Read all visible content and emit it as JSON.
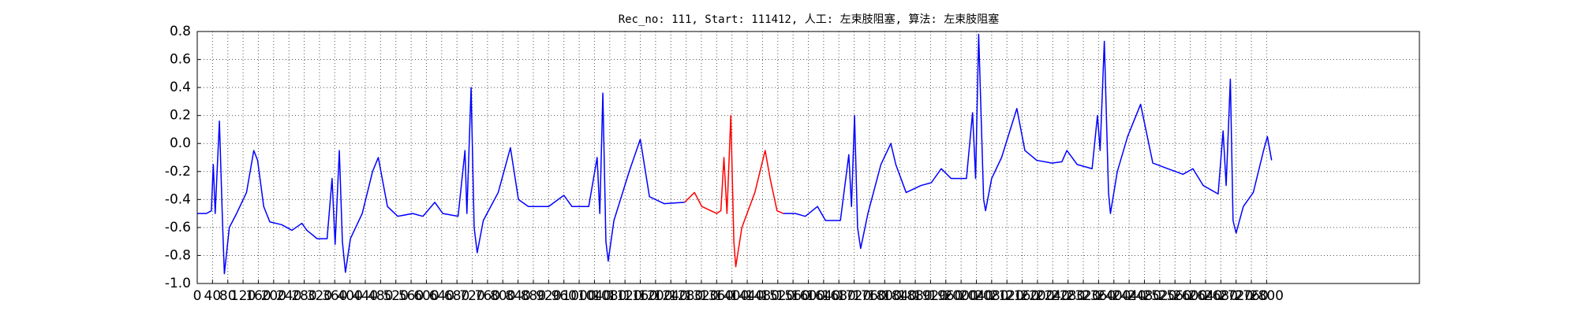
{
  "chart_data": {
    "type": "line",
    "title": "Rec_no: 111, Start: 111412, 人工: 左束肢阻塞, 算法: 左束肢阻塞",
    "x": [
      0,
      24,
      37,
      42,
      47,
      58,
      66,
      71,
      84,
      103,
      129,
      148,
      158,
      174,
      190,
      221,
      248,
      274,
      287,
      314,
      340,
      353,
      361,
      372,
      380,
      388,
      401,
      432,
      459,
      474,
      498,
      525,
      564,
      591,
      622,
      643,
      683,
      701,
      706,
      717,
      725,
      733,
      749,
      788,
      820,
      841,
      867,
      920,
      960,
      981,
      1025,
      1047,
      1054,
      1062,
      1070,
      1076,
      1091,
      1131,
      1160,
      1184,
      1223,
      1276,
      1302,
      1321,
      1360,
      1371,
      1379,
      1387,
      1397,
      1405,
      1410,
      1426,
      1460,
      1487,
      1500,
      1518,
      1534,
      1566,
      1592,
      1624,
      1645,
      1684,
      1706,
      1713,
      1721,
      1729,
      1737,
      1756,
      1790,
      1816,
      1829,
      1856,
      1895,
      1922,
      1948,
      1974,
      2014,
      2030,
      2038,
      2046,
      2059,
      2064,
      2080,
      2106,
      2146,
      2167,
      2198,
      2238,
      2264,
      2277,
      2304,
      2343,
      2357,
      2364,
      2375,
      2386,
      2391,
      2409,
      2436,
      2470,
      2502,
      2541,
      2581,
      2607,
      2634,
      2673,
      2686,
      2694,
      2705,
      2712,
      2720,
      2739,
      2765,
      2792,
      2802,
      2813
    ],
    "series": [
      {
        "color": "#0000ff",
        "values": [
          -0.5,
          -0.5,
          -0.48,
          -0.15,
          -0.5,
          0.16,
          -0.55,
          -0.93,
          -0.6,
          -0.5,
          -0.35,
          -0.05,
          -0.12,
          -0.45,
          -0.56,
          -0.58,
          -0.62,
          -0.57,
          -0.62,
          -0.68,
          -0.68,
          -0.25,
          -0.72,
          -0.05,
          -0.7,
          -0.92,
          -0.68,
          -0.5,
          -0.2,
          -0.1,
          -0.45,
          -0.52,
          -0.5,
          -0.52,
          -0.42,
          -0.5,
          -0.52,
          -0.05,
          -0.5,
          0.4,
          -0.6,
          -0.78,
          -0.55,
          -0.35,
          -0.03,
          -0.4,
          -0.45,
          -0.45,
          -0.37,
          -0.45,
          -0.45,
          -0.1,
          -0.5,
          0.36,
          -0.7,
          -0.84,
          -0.55,
          -0.2,
          0.03,
          -0.38,
          -0.43,
          -0.42,
          null,
          null,
          null,
          null,
          null,
          null,
          null,
          null,
          null,
          null,
          null,
          null,
          null,
          null,
          -0.5,
          -0.5,
          -0.52,
          -0.45,
          -0.55,
          -0.55,
          -0.08,
          -0.45,
          0.2,
          -0.6,
          -0.75,
          -0.5,
          -0.15,
          0.0,
          -0.15,
          -0.35,
          -0.3,
          -0.28,
          -0.18,
          -0.25,
          -0.25,
          0.22,
          -0.25,
          0.78,
          -0.4,
          -0.48,
          -0.25,
          -0.1,
          0.25,
          -0.05,
          -0.12,
          -0.14,
          -0.13,
          -0.05,
          -0.15,
          -0.18,
          0.2,
          -0.05,
          0.73,
          -0.35,
          -0.5,
          -0.2,
          0.05,
          0.28,
          -0.14,
          -0.18,
          -0.22,
          -0.18,
          -0.3,
          -0.36,
          0.09,
          -0.3,
          0.46,
          -0.55,
          -0.64,
          -0.45,
          -0.35,
          -0.05,
          0.05,
          -0.12
        ]
      },
      {
        "color": "#ff0000",
        "values": [
          null,
          null,
          null,
          null,
          null,
          null,
          null,
          null,
          null,
          null,
          null,
          null,
          null,
          null,
          null,
          null,
          null,
          null,
          null,
          null,
          null,
          null,
          null,
          null,
          null,
          null,
          null,
          null,
          null,
          null,
          null,
          null,
          null,
          null,
          null,
          null,
          null,
          null,
          null,
          null,
          null,
          null,
          null,
          null,
          null,
          null,
          null,
          null,
          null,
          null,
          null,
          null,
          null,
          null,
          null,
          null,
          null,
          null,
          null,
          null,
          null,
          -0.42,
          -0.35,
          -0.45,
          -0.5,
          -0.48,
          -0.1,
          -0.5,
          0.2,
          -0.7,
          -0.88,
          -0.6,
          -0.35,
          -0.05,
          -0.25,
          -0.48,
          -0.5,
          null,
          null,
          null,
          null,
          null,
          null,
          null,
          null,
          null,
          null,
          null,
          null,
          null,
          null,
          null,
          null,
          null,
          null,
          null,
          null,
          null,
          null,
          null,
          null,
          null,
          null,
          null,
          null,
          null,
          null,
          null,
          null,
          null,
          null,
          null,
          null,
          null,
          null,
          null,
          null,
          null,
          null,
          null,
          null,
          null,
          null,
          null,
          null,
          null,
          null,
          null,
          null,
          null,
          null,
          null,
          null,
          null,
          null,
          null
        ]
      }
    ],
    "xlim": [
      0,
      3200
    ],
    "xticks": [
      0,
      40,
      80,
      120,
      160,
      200,
      240,
      280,
      320,
      360,
      400,
      440,
      480,
      520,
      560,
      600,
      640,
      680,
      720,
      760,
      800,
      840,
      880,
      920,
      960,
      1000,
      1040,
      1080,
      1120,
      1160,
      1200,
      1240,
      1280,
      1320,
      1360,
      1400,
      1440,
      1480,
      1520,
      1560,
      1600,
      1640,
      1680,
      1720,
      1760,
      1800,
      1840,
      1880,
      1920,
      1960,
      2000,
      2040,
      2080,
      2120,
      2160,
      2200,
      2240,
      2280,
      2320,
      2360,
      2400,
      2440,
      2480,
      2520,
      2560,
      2600,
      2640,
      2680,
      2720,
      2760,
      2800
    ],
    "ylim": [
      -1,
      0.8
    ],
    "yticks": [
      {
        "value": -1,
        "label": "-1.0"
      },
      -0.8,
      -0.6,
      -0.4,
      -0.2,
      {
        "value": 0,
        "label": "0.0"
      },
      0.2,
      0.4,
      0.6,
      0.8
    ],
    "grid": true
  }
}
